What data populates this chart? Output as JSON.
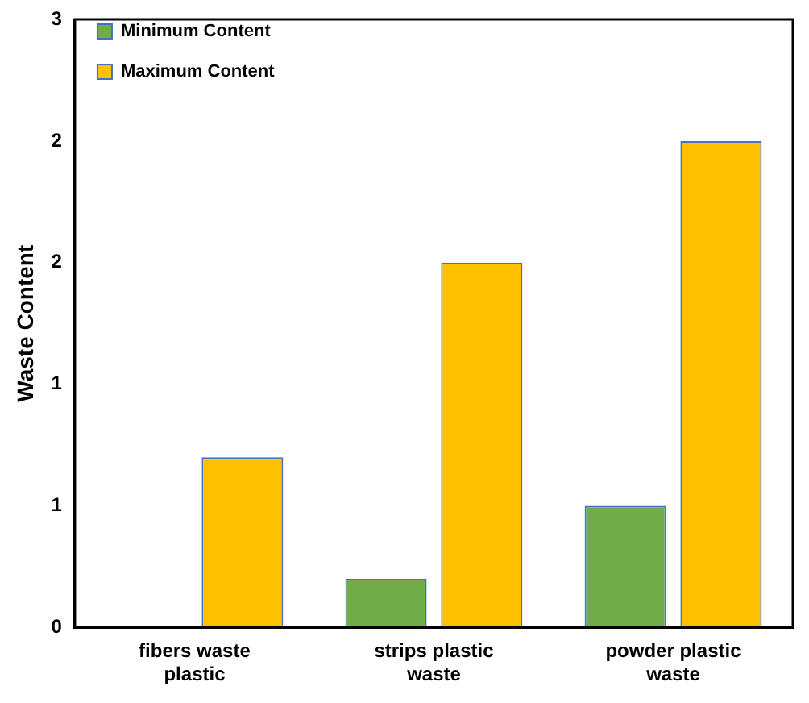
{
  "chart_data": {
    "type": "bar",
    "ylabel": "Waste Content",
    "categories": [
      "fibers waste plastic",
      "strips plastic waste",
      "powder plastic waste"
    ],
    "series": [
      {
        "name": "Minimum Content",
        "color": "#70ad47",
        "values": [
          0,
          0.2,
          0.5
        ]
      },
      {
        "name": "Maximum Content",
        "color": "#ffc000",
        "values": [
          0.7,
          1.5,
          2.0
        ]
      }
    ],
    "ylim": [
      0,
      2.5
    ],
    "yticks": [
      0,
      {
        "value": 0.5,
        "label": "1"
      },
      1,
      {
        "value": 1.5,
        "label": "2"
      },
      2,
      {
        "value": 2.5,
        "label": "3"
      }
    ],
    "grid": false,
    "legend": "top left"
  }
}
